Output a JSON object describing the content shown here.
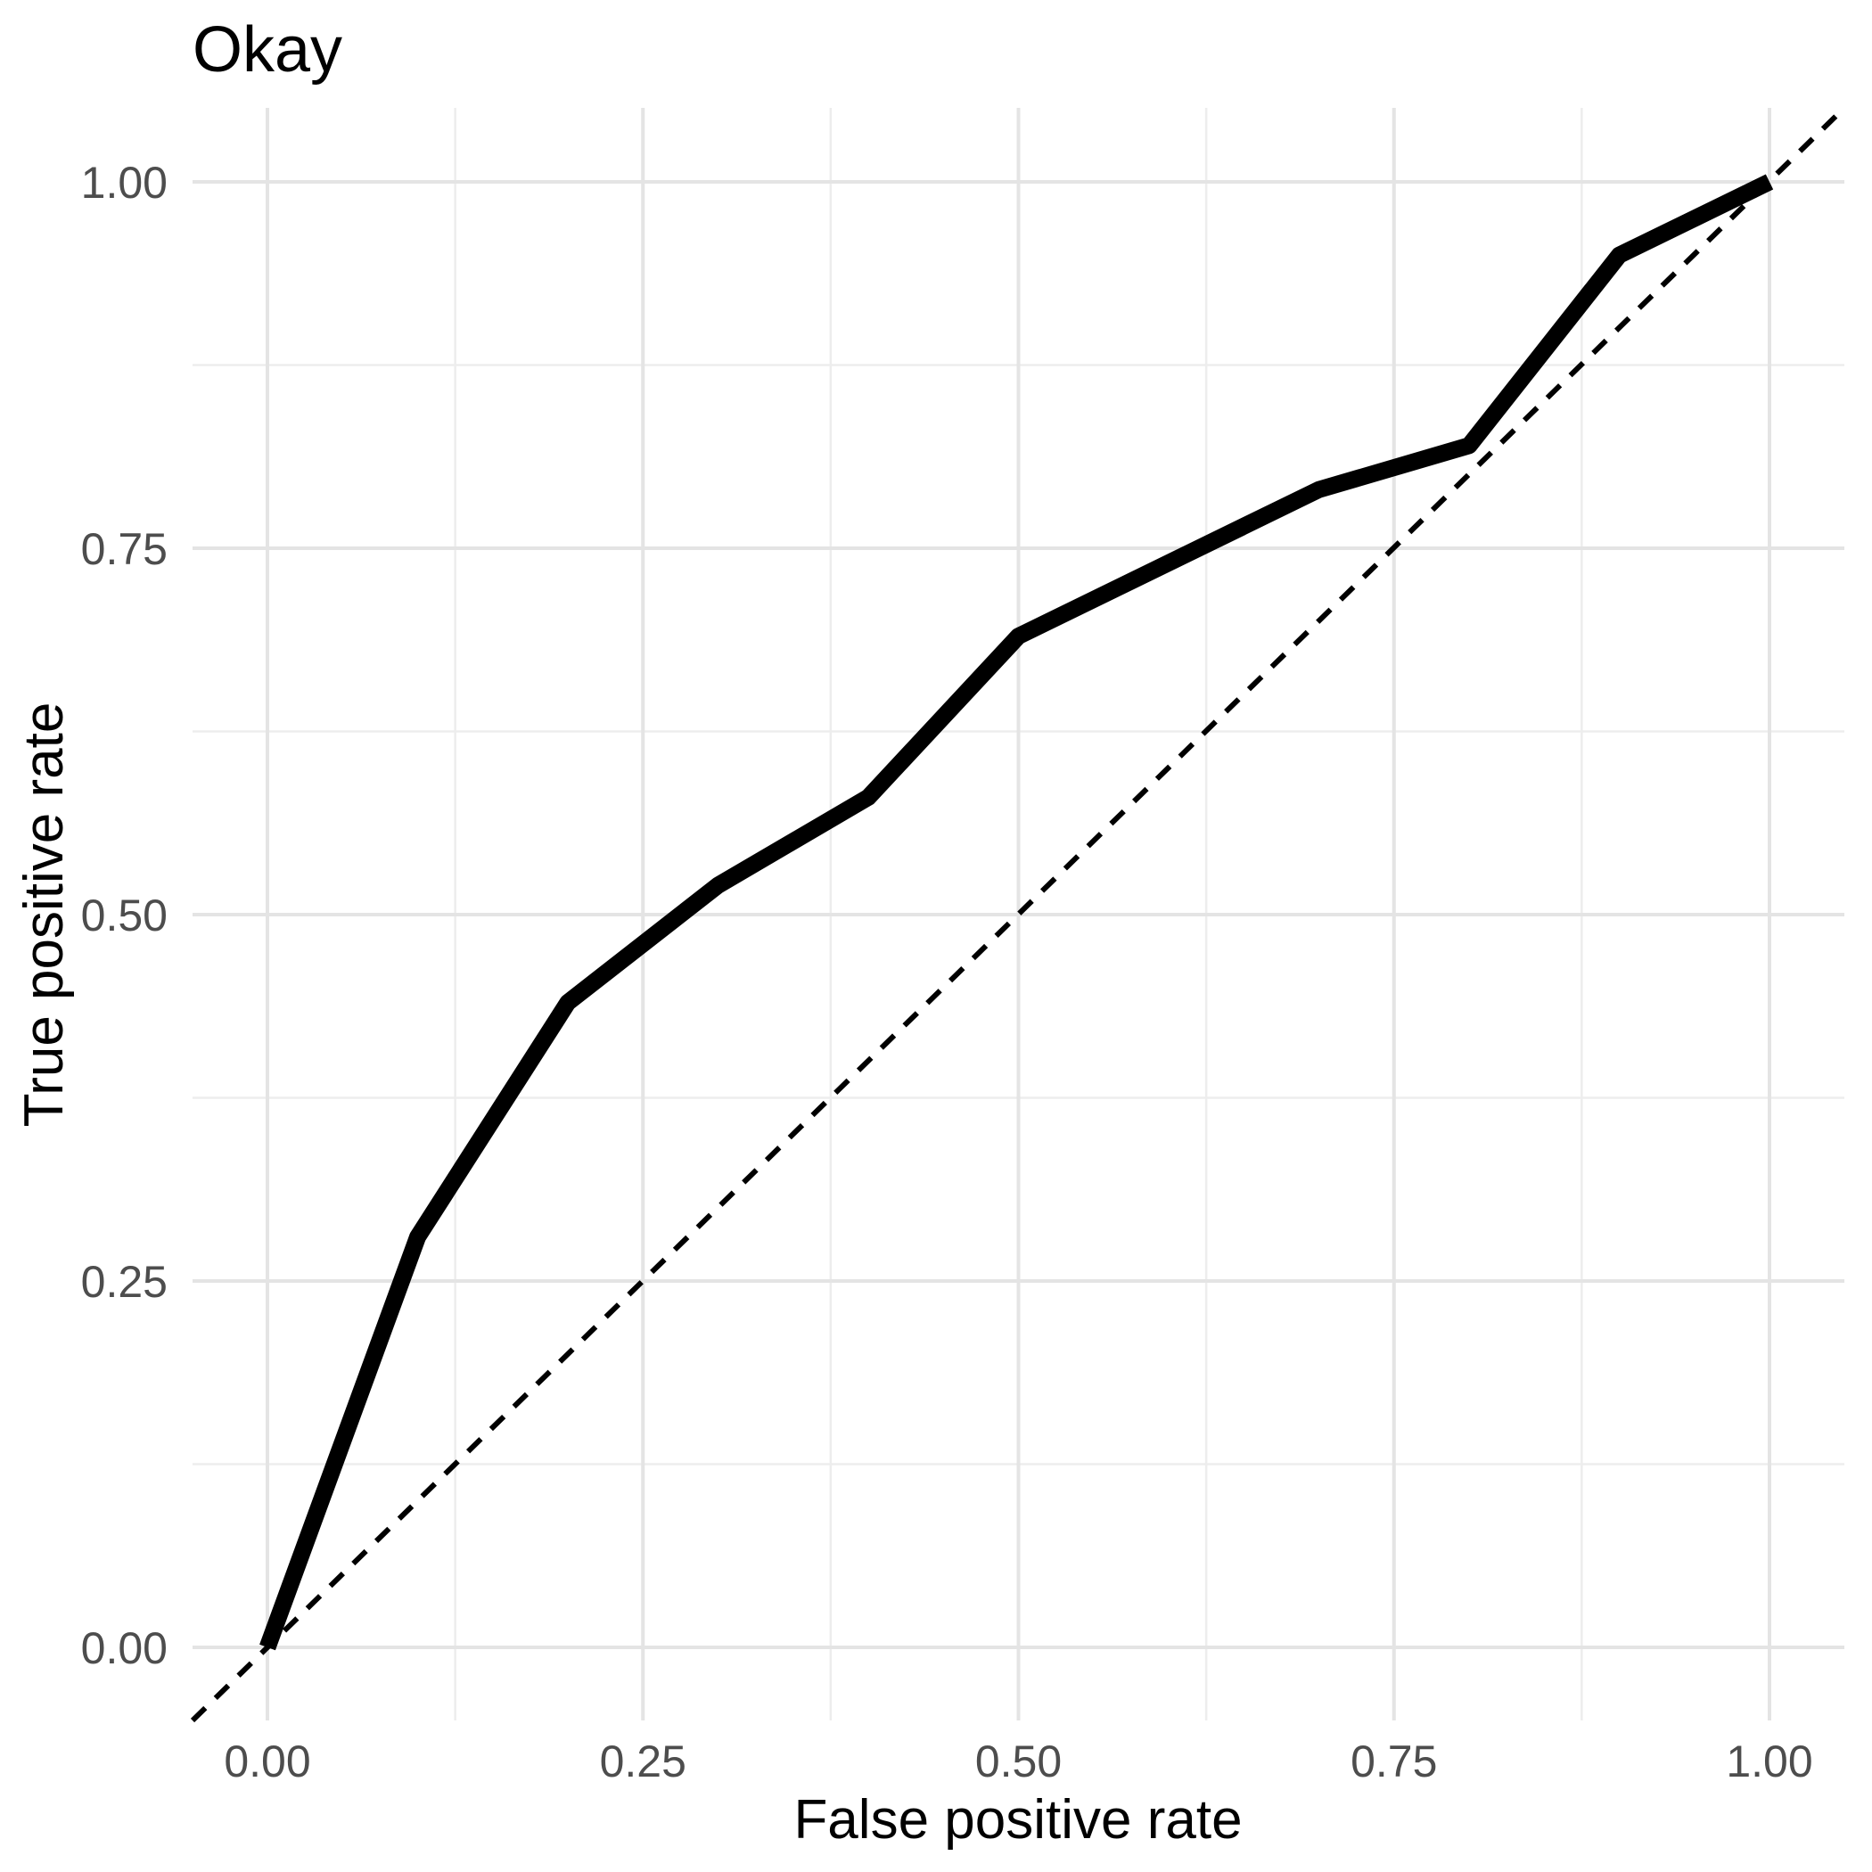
{
  "chart_data": {
    "type": "line",
    "title": "Okay",
    "xlabel": "False positive rate",
    "ylabel": "True positive rate",
    "xlim": [
      0,
      1
    ],
    "ylim": [
      0,
      1
    ],
    "grid": "major+minor",
    "legend_position": "none",
    "x_tick_values": [
      0,
      0.25,
      0.5,
      0.75,
      1
    ],
    "x_tick_labels": [
      "0.00",
      "0.25",
      "0.50",
      "0.75",
      "1.00"
    ],
    "y_tick_values": [
      0,
      0.25,
      0.5,
      0.75,
      1
    ],
    "y_tick_labels": [
      "0.00",
      "0.25",
      "0.50",
      "0.75",
      "1.00"
    ],
    "x_minor_tick_values": [
      0.125,
      0.375,
      0.625,
      0.875
    ],
    "y_minor_tick_values": [
      0.125,
      0.375,
      0.625,
      0.875
    ],
    "series": [
      {
        "name": "roc-curve",
        "type": "line",
        "style": "solid",
        "x": [
          0,
          0.1,
          0.2,
          0.3,
          0.4,
          0.5,
          0.7,
          0.8,
          0.9,
          1.0
        ],
        "y": [
          0,
          0.28,
          0.44,
          0.52,
          0.58,
          0.69,
          0.79,
          0.82,
          0.95,
          1.0
        ]
      },
      {
        "name": "chance-diagonal",
        "type": "line",
        "style": "dashed",
        "x": [
          0,
          1
        ],
        "y": [
          0,
          1
        ]
      }
    ],
    "colors": {
      "background": "#FFFFFF",
      "curve": "#000000",
      "diagonal": "#000000",
      "grid_major": "#E4E4E4",
      "grid_minor": "#EDEDED",
      "tick_label": "#4D4D4D",
      "title": "#000000",
      "axis_title": "#000000"
    }
  }
}
